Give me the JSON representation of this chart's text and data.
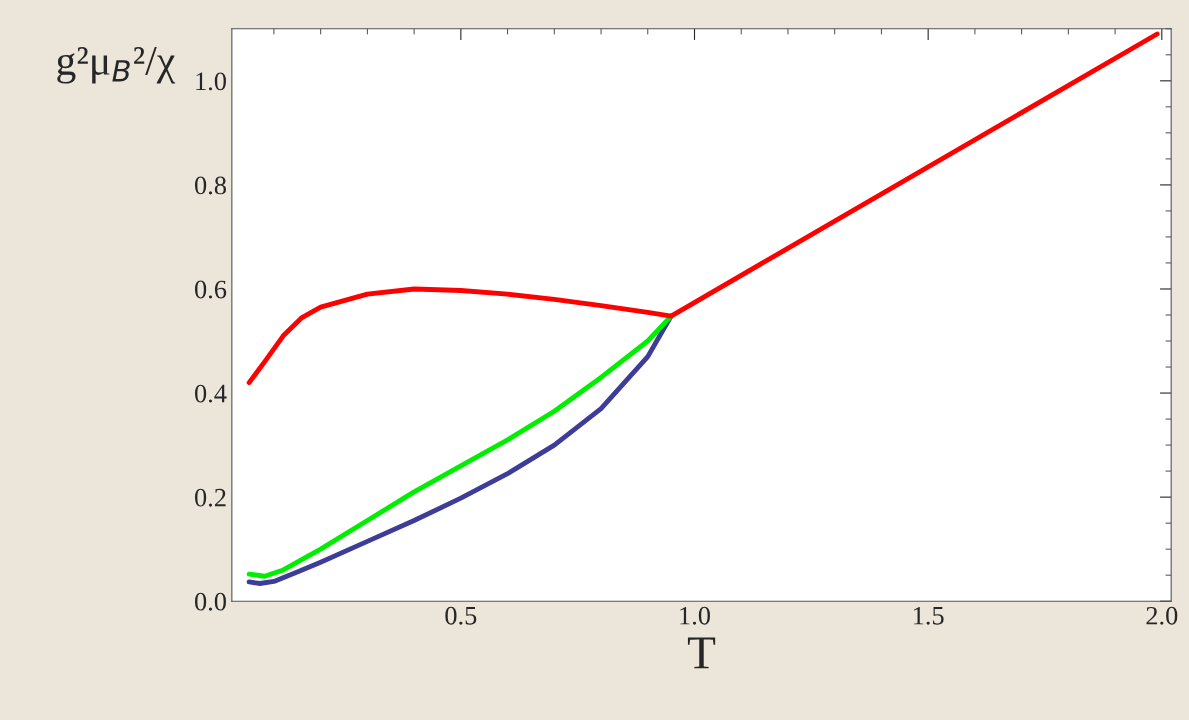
{
  "chart_data": {
    "type": "line",
    "xlabel": "T",
    "ylabel": "g²μ$_{B}$²/χ",
    "xlim": [
      0.01,
      2.02
    ],
    "ylim": [
      0,
      1.1
    ],
    "xticks": [
      0.5,
      {
        "value": 1,
        "label": "1.0"
      },
      1.5,
      {
        "value": 2,
        "label": "2.0"
      }
    ],
    "yticks": [
      {
        "value": 0,
        "label": "0.0"
      },
      0.2,
      0.4,
      0.6,
      0.8,
      {
        "value": 1,
        "label": "1.0"
      }
    ],
    "grid": false,
    "line_style": "solid",
    "marker": "none",
    "series": [
      {
        "color": "#3d3d99",
        "x": [
          0.047,
          0.07,
          0.1,
          0.15,
          0.2,
          0.3,
          0.4,
          0.5,
          0.6,
          0.7,
          0.8,
          0.9,
          0.95
        ],
        "values": [
          0.037,
          0.034,
          0.038,
          0.056,
          0.075,
          0.115,
          0.155,
          0.198,
          0.245,
          0.3,
          0.37,
          0.47,
          0.548
        ]
      },
      {
        "color": "#00ee00",
        "x": [
          0.047,
          0.08,
          0.12,
          0.2,
          0.3,
          0.4,
          0.5,
          0.6,
          0.7,
          0.8,
          0.9,
          0.95
        ],
        "values": [
          0.052,
          0.048,
          0.06,
          0.1,
          0.155,
          0.21,
          0.26,
          0.31,
          0.365,
          0.43,
          0.5,
          0.548
        ]
      },
      {
        "color": "#ff0000",
        "x": [
          0.047,
          0.08,
          0.12,
          0.16,
          0.2,
          0.3,
          0.4,
          0.5,
          0.6,
          0.7,
          0.8,
          0.9,
          0.95,
          1.99
        ],
        "values": [
          0.42,
          0.46,
          0.51,
          0.545,
          0.565,
          0.59,
          0.6,
          0.597,
          0.59,
          0.58,
          0.568,
          0.555,
          0.548,
          1.09
        ]
      }
    ]
  }
}
